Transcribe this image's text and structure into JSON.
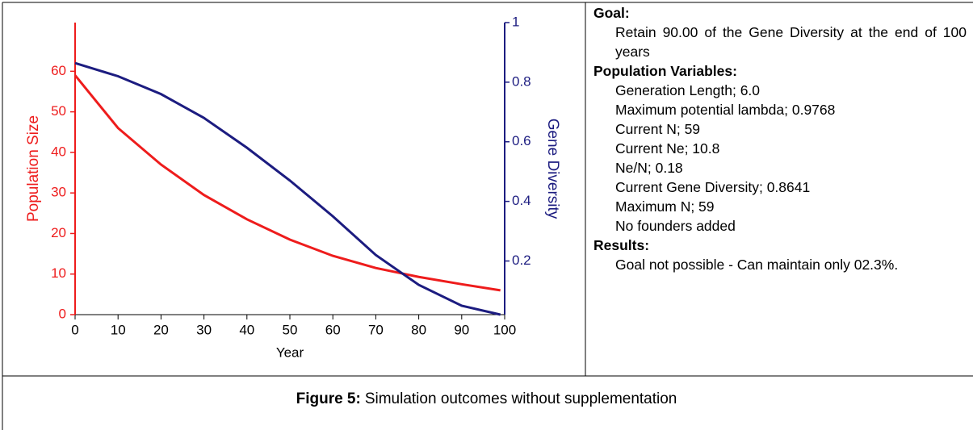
{
  "chart_data": {
    "type": "line",
    "x": [
      0,
      10,
      20,
      30,
      40,
      50,
      60,
      70,
      80,
      90,
      99
    ],
    "xlabel": "Year",
    "ylabel": "Population Size",
    "y2label": "Gene Diversity",
    "xlim": [
      0,
      100
    ],
    "xticks": [
      0,
      10,
      20,
      30,
      40,
      50,
      60,
      70,
      80,
      90,
      100
    ],
    "ylim": [
      0,
      72
    ],
    "yticks": [
      0,
      10,
      20,
      30,
      40,
      50,
      60
    ],
    "y2lim": [
      0.02,
      1
    ],
    "y2ticks": [
      0.2,
      0.4,
      0.6,
      0.8,
      1
    ],
    "series": [
      {
        "name": "Population Size",
        "color": "#ee1c1c",
        "values": [
          59,
          46,
          37,
          29.5,
          23.5,
          18.5,
          14.5,
          11.5,
          9.3,
          7.5,
          6
        ]
      },
      {
        "name": "Gene Diversity",
        "color": "#1c1c80",
        "axis": "y2",
        "values": [
          0.864,
          0.82,
          0.76,
          0.68,
          0.58,
          0.47,
          0.35,
          0.22,
          0.12,
          0.05,
          0.02
        ]
      }
    ]
  },
  "panel": {
    "sections": [
      {
        "heading": "Goal:",
        "items": [
          "Retain  90.00 of the Gene Diversity at the end of 100 years"
        ]
      },
      {
        "heading": "Population Variables:",
        "items": [
          "Generation Length; 6.0",
          "Maximum potential lambda; 0.9768",
          "Current N; 59",
          "Current Ne; 10.8",
          "Ne/N; 0.18",
          "Current Gene Diversity; 0.8641",
          "Maximum N; 59",
          "No founders added"
        ]
      },
      {
        "heading": "Results:",
        "items": [
          "Goal not possible - Can maintain only 02.3%."
        ]
      }
    ]
  },
  "caption": {
    "label": "Figure 5:",
    "text": "Simulation outcomes without supplementation"
  }
}
